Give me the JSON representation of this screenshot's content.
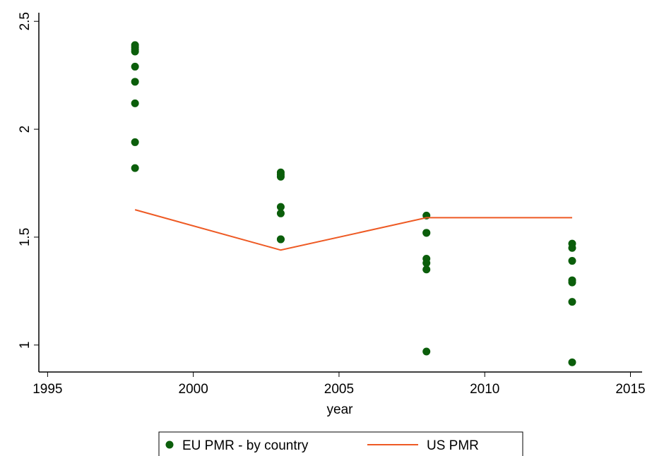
{
  "chart_data": {
    "type": "scatter",
    "xlabel": "year",
    "xlim": [
      1994.7,
      2015.4
    ],
    "xticks": [
      1995,
      2000,
      2005,
      2010,
      2015
    ],
    "ylim": [
      0.875,
      2.54
    ],
    "yticks": [
      1,
      1.5,
      2,
      2.5
    ],
    "series": [
      {
        "name": "EU PMR - by country",
        "type": "scatter",
        "color": "#0b5e0b",
        "x": [
          1998,
          1998,
          1998,
          1998,
          1998,
          1998,
          1998,
          1998,
          1998,
          2003,
          2003,
          2003,
          2003,
          2003,
          2003,
          2003,
          2008,
          2008,
          2008,
          2008,
          2008,
          2008,
          2008,
          2013,
          2013,
          2013,
          2013,
          2013,
          2013,
          2013
        ],
        "values": [
          2.39,
          2.38,
          2.37,
          2.36,
          2.29,
          2.22,
          2.12,
          1.94,
          1.82,
          1.8,
          1.79,
          1.78,
          1.64,
          1.61,
          1.49,
          1.49,
          1.6,
          1.52,
          1.52,
          1.4,
          1.38,
          1.35,
          0.97,
          1.47,
          1.45,
          1.39,
          1.3,
          1.29,
          1.2,
          0.92
        ]
      },
      {
        "name": "US PMR",
        "type": "line",
        "color": "#ee5a24",
        "x": [
          1998,
          2003,
          2008,
          2013
        ],
        "values": [
          1.627,
          1.44,
          1.59,
          1.59
        ]
      }
    ]
  }
}
